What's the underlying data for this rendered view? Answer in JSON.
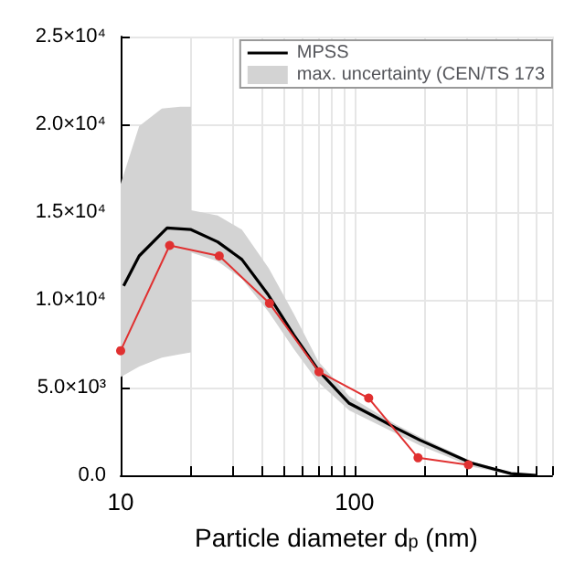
{
  "chart_data": {
    "type": "line",
    "xlabel": "Particle diameter d$_{p}$ (nm)",
    "log": "x",
    "grid": true,
    "legend": "top right",
    "xlim": [
      10,
      700
    ],
    "xticks": [
      10,
      {
        "value": 20,
        "label": null
      },
      {
        "value": 30,
        "label": null
      },
      {
        "value": 40,
        "label": null
      },
      {
        "value": 50,
        "label": null
      },
      {
        "value": 60,
        "label": null
      },
      {
        "value": 70,
        "label": null
      },
      {
        "value": 80,
        "label": null
      },
      {
        "value": 90,
        "label": null
      },
      100,
      {
        "value": 200,
        "label": null
      },
      {
        "value": 300,
        "label": null
      },
      {
        "value": 400,
        "label": null
      },
      {
        "value": 500,
        "label": null
      },
      {
        "value": 600,
        "label": null
      },
      {
        "value": 700,
        "label": null
      }
    ],
    "ylim": [
      0,
      25000
    ],
    "yticks": [
      {
        "value": 0,
        "label": "0.0"
      },
      {
        "value": 5000,
        "label": "5.0×10³"
      },
      {
        "value": 10000,
        "label": "1.0×10⁴"
      },
      {
        "value": 15000,
        "label": "1.5×10⁴"
      },
      {
        "value": 20000,
        "label": "2.0×10⁴"
      },
      {
        "value": 25000,
        "label": "2.5×10⁴"
      }
    ],
    "series": [
      {
        "name": "MPSS",
        "color": "#000000",
        "marker": "none",
        "x": [
          10.3,
          12,
          15.8,
          20,
          26,
          33,
          42.7,
          55,
          70.8,
          95,
          120,
          150,
          191,
          316,
          467,
          600
        ],
        "values": [
          10800,
          12500,
          14100,
          14000,
          13300,
          12300,
          10300,
          8000,
          5900,
          4100,
          3400,
          2700,
          2000,
          700,
          100,
          0
        ]
      },
      {
        "color": "#e03030",
        "marker": "circle",
        "x": [
          10,
          16.2,
          26.4,
          43.3,
          70.5,
          115,
          187,
          307
        ],
        "values": [
          7100,
          13100,
          12500,
          9800,
          5900,
          4400,
          1000,
          600
        ]
      },
      {
        "type": "area",
        "name": "max. uncertainty (CEN/TS 173",
        "color": "#d3d3d3",
        "x": [
          10,
          12,
          15,
          18,
          20,
          20,
          26,
          33,
          43,
          55,
          70,
          95,
          150,
          190,
          316,
          467,
          600
        ],
        "values": [
          null,
          null,
          null,
          null,
          null,
          null,
          null,
          null,
          null,
          null,
          null,
          null,
          null,
          null,
          null,
          null,
          null
        ],
        "lower": [
          5600,
          6200,
          6700,
          6900,
          7000,
          12700,
          12200,
          11200,
          9300,
          7200,
          5300,
          3700,
          2400,
          1700,
          500,
          50,
          0
        ],
        "upper": [
          16600,
          19900,
          20900,
          21000,
          21000,
          15100,
          14800,
          14000,
          11800,
          9200,
          6500,
          4500,
          2900,
          2200,
          800,
          150,
          0
        ]
      }
    ]
  }
}
